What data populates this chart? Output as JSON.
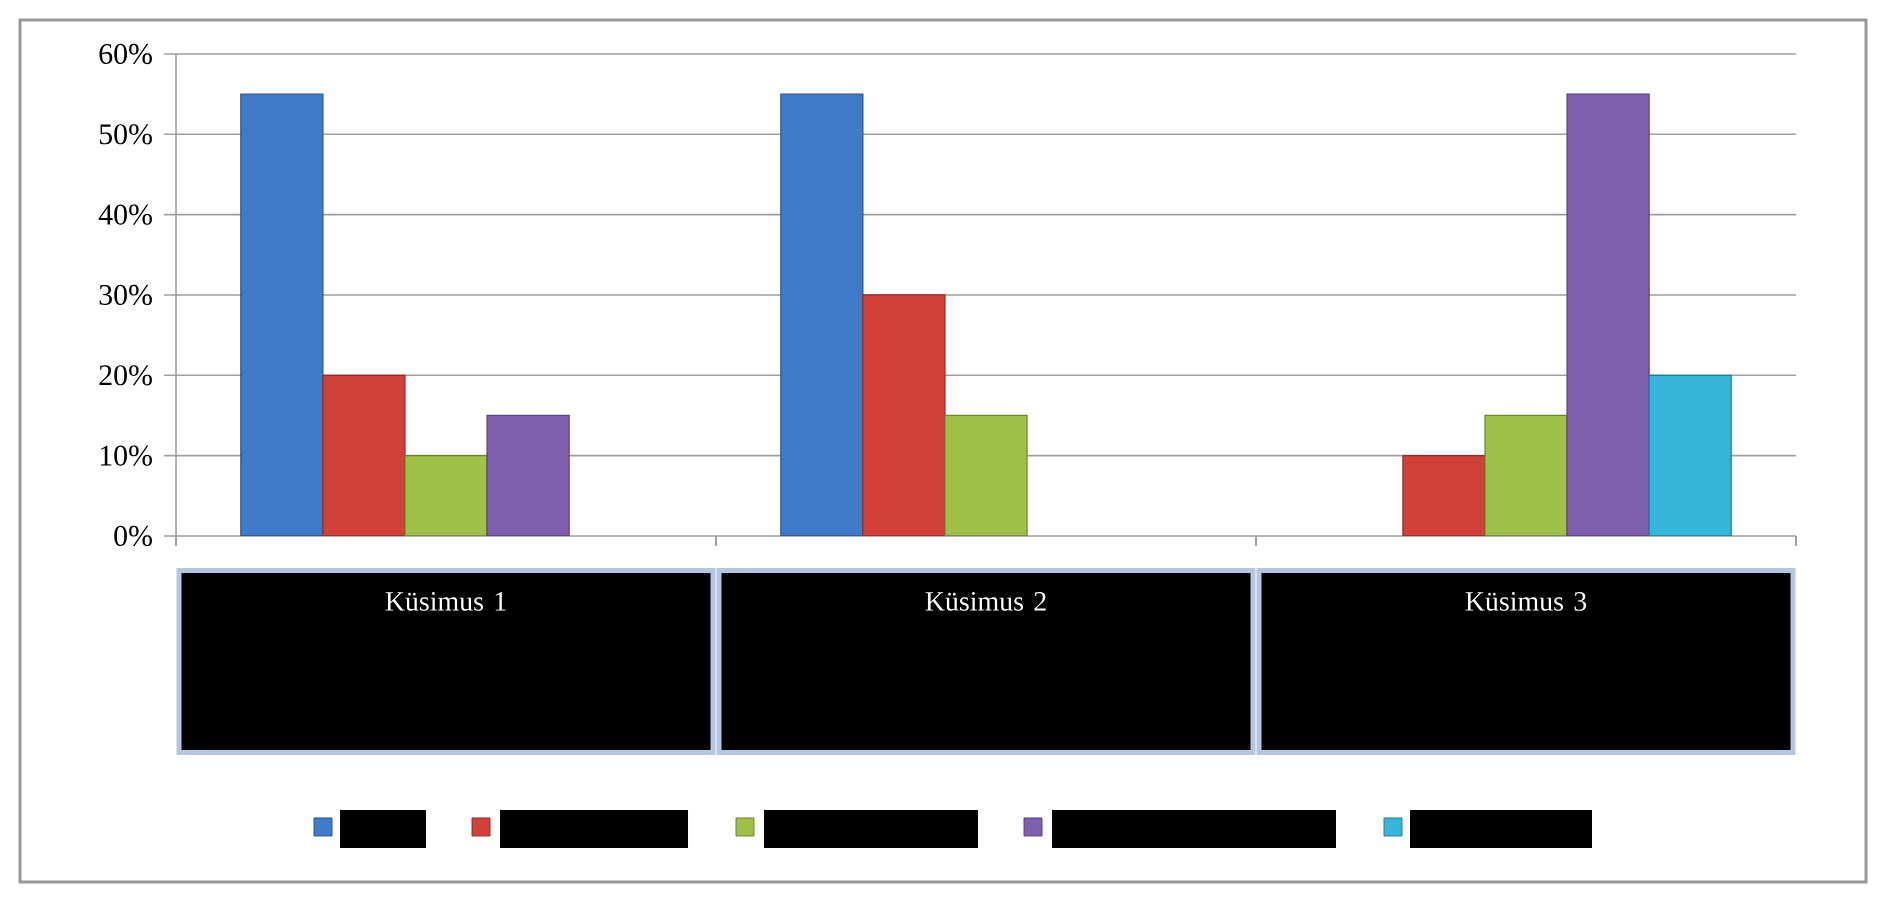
{
  "chart_data": {
    "type": "bar",
    "categories": [
      "Küsimus 1",
      "Küsimus 2",
      "Küsimus 3"
    ],
    "series": [
      {
        "color": "#3f7bc9",
        "values": [
          55,
          55,
          null
        ]
      },
      {
        "color": "#d2403a",
        "values": [
          20,
          30,
          10
        ]
      },
      {
        "color": "#9dc046",
        "values": [
          10,
          15,
          15
        ]
      },
      {
        "color": "#7f5fae",
        "values": [
          15,
          null,
          55
        ]
      },
      {
        "color": "#34b5d9",
        "values": [
          null,
          null,
          20
        ]
      }
    ],
    "ylim": [
      0,
      60
    ],
    "yticks": [
      {
        "value": 0,
        "label": "0%"
      },
      {
        "value": 10,
        "label": "10%"
      },
      {
        "value": 20,
        "label": "20%"
      },
      {
        "value": 30,
        "label": "30%"
      },
      {
        "value": 40,
        "label": "40%"
      },
      {
        "value": 50,
        "label": "50%"
      },
      {
        "value": 60,
        "label": "60%"
      }
    ],
    "grid": "y"
  }
}
